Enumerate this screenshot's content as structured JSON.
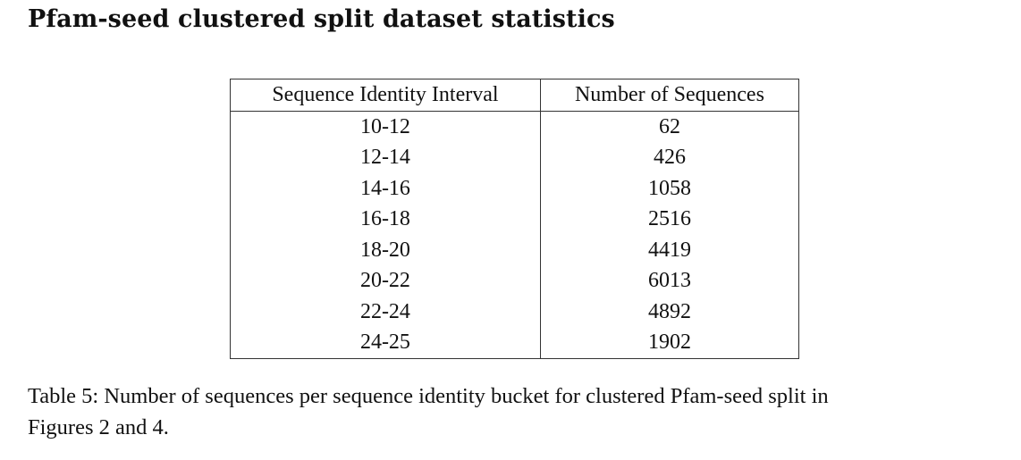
{
  "heading": "Pfam-seed clustered split dataset statistics",
  "table": {
    "headers": [
      "Sequence Identity Interval",
      "Number of Sequences"
    ],
    "rows": [
      [
        "10-12",
        "62"
      ],
      [
        "12-14",
        "426"
      ],
      [
        "14-16",
        "1058"
      ],
      [
        "16-18",
        "2516"
      ],
      [
        "18-20",
        "4419"
      ],
      [
        "20-22",
        "6013"
      ],
      [
        "22-24",
        "4892"
      ],
      [
        "24-25",
        "1902"
      ]
    ]
  },
  "caption": {
    "line1": "Table 5: Number of sequences per sequence identity bucket for clustered Pfam-seed split in",
    "line2": "Figures 2 and 4."
  }
}
